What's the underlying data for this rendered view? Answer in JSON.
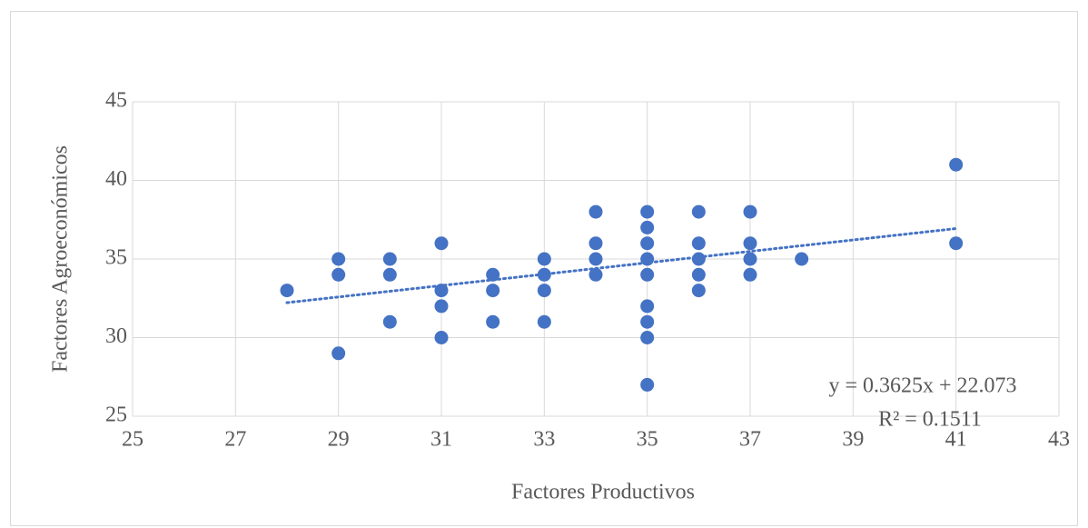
{
  "chart_data": {
    "type": "scatter",
    "x_label": "Factores Productivos",
    "y_label": "Factores Agroeconómicos",
    "color": "#4472c4",
    "x": [
      28,
      29,
      29,
      29,
      30,
      30,
      30,
      31,
      31,
      31,
      31,
      32,
      32,
      32,
      33,
      33,
      33,
      33,
      34,
      34,
      34,
      34,
      35,
      35,
      35,
      35,
      35,
      35,
      35,
      35,
      35,
      36,
      36,
      36,
      36,
      36,
      37,
      37,
      37,
      37,
      38,
      41,
      41
    ],
    "values": [
      33,
      35,
      34,
      29,
      35,
      34,
      31,
      36,
      33,
      32,
      30,
      34,
      33,
      31,
      35,
      34,
      33,
      31,
      38,
      36,
      35,
      34,
      38,
      37,
      36,
      35,
      34,
      32,
      31,
      30,
      27,
      38,
      36,
      35,
      34,
      33,
      38,
      36,
      35,
      34,
      35,
      41,
      36
    ],
    "xlim": [
      25,
      43
    ],
    "xticks": [
      25,
      27,
      29,
      31,
      33,
      35,
      37,
      39,
      41,
      43
    ],
    "ylim": [
      25,
      45
    ],
    "yticks": [
      25,
      30,
      35,
      40,
      45
    ],
    "grid": true,
    "trendline": {
      "slope": 0.3625,
      "intercept": 22.073,
      "equation": "y = 0.3625x + 22.073",
      "r_squared": "R² = 0.1511"
    }
  }
}
